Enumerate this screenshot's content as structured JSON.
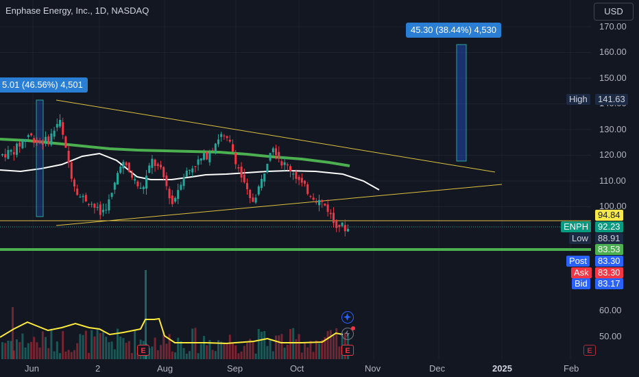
{
  "header": {
    "title": "Enphase Energy, Inc., 1D, NASDAQ",
    "currency": "USD"
  },
  "price_axis": [
    "170.00",
    "160.00",
    "150.00",
    "140.00",
    "130.00",
    "120.00",
    "110.00",
    "100.00"
  ],
  "volume_axis": [
    "60.00",
    "50.00"
  ],
  "time_axis": [
    "Jun",
    "2",
    "Aug",
    "Sep",
    "Oct",
    "Nov",
    "Dec",
    "2025",
    "Feb"
  ],
  "tags": {
    "high": {
      "label": "High",
      "value": "141.63"
    },
    "level": {
      "value": "94.84"
    },
    "symbol": {
      "label": "ENPH",
      "value": "92.23"
    },
    "low": {
      "label": "Low",
      "value": "88.91"
    },
    "support": {
      "value": "83.53"
    },
    "post": {
      "label": "Post",
      "value": "83.30"
    },
    "ask": {
      "label": "Ask",
      "value": "83.30"
    },
    "bid": {
      "label": "Bid",
      "value": "83.17"
    }
  },
  "measurements": {
    "left": "5.01 (46.56%) 4,501",
    "right": "45.30 (38.44%) 4,530"
  },
  "events": {
    "earnings_letter": "E"
  },
  "colors": {
    "background": "#131722",
    "up": "#26a69a",
    "down": "#f23645",
    "trendline": "#e0c341",
    "ma_green": "#4caf50",
    "ma_white": "#ffffff",
    "volume_osc": "#ffeb3b",
    "accent": "#2a7fd4"
  }
}
